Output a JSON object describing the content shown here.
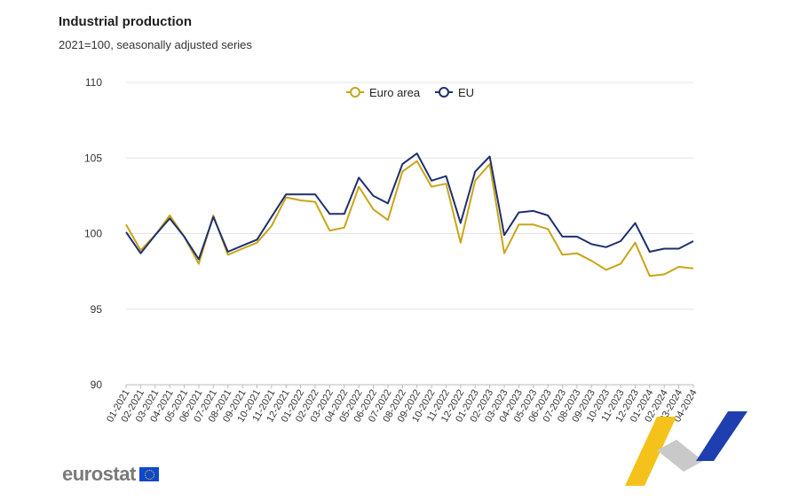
{
  "header": {
    "title": "Industrial production",
    "subtitle": "2021=100, seasonally adjusted series"
  },
  "brand": {
    "name": "eurostat"
  },
  "colors": {
    "euro_area": "#c8a518",
    "eu": "#1f2f6e",
    "grid": "#e3e3e3"
  },
  "chart_data": {
    "type": "line",
    "title": "Industrial production",
    "subtitle": "2021=100, seasonally adjusted series",
    "xlabel": "",
    "ylabel": "",
    "ylim": [
      90,
      110
    ],
    "yticks": [
      90,
      95,
      100,
      105,
      110
    ],
    "grid": true,
    "legend_position": "top-center",
    "x": [
      "01-2021",
      "02-2021",
      "03-2021",
      "04-2021",
      "05-2021",
      "06-2021",
      "07-2021",
      "08-2021",
      "09-2021",
      "10-2021",
      "11-2021",
      "12-2021",
      "01-2022",
      "02-2022",
      "03-2022",
      "04-2022",
      "05-2022",
      "06-2022",
      "07-2022",
      "08-2022",
      "09-2022",
      "10-2022",
      "11-2022",
      "12-2022",
      "01-2023",
      "02-2023",
      "03-2023",
      "04-2023",
      "05-2023",
      "06-2023",
      "07-2023",
      "08-2023",
      "09-2023",
      "10-2023",
      "11-2023",
      "12-2023",
      "01-2024",
      "02-2024",
      "03-2024",
      "04-2024"
    ],
    "series": [
      {
        "name": "Euro area",
        "color": "#c8a518",
        "values": [
          100.6,
          98.9,
          99.9,
          101.2,
          99.8,
          98.0,
          101.2,
          98.6,
          99.0,
          99.4,
          100.5,
          102.4,
          102.2,
          102.1,
          100.2,
          100.4,
          103.1,
          101.6,
          100.9,
          104.1,
          104.8,
          103.1,
          103.3,
          99.4,
          103.5,
          104.6,
          98.7,
          100.6,
          100.6,
          100.3,
          98.6,
          98.7,
          98.2,
          97.6,
          98.0,
          99.4,
          97.2,
          97.3,
          97.8,
          97.7
        ]
      },
      {
        "name": "EU",
        "color": "#1f2f6e",
        "values": [
          100.1,
          98.7,
          99.9,
          101.0,
          99.8,
          98.3,
          101.1,
          98.8,
          99.2,
          99.6,
          101.1,
          102.6,
          102.6,
          102.6,
          101.3,
          101.3,
          103.7,
          102.5,
          102.0,
          104.6,
          105.3,
          103.5,
          103.8,
          100.7,
          104.1,
          105.1,
          99.9,
          101.4,
          101.5,
          101.2,
          99.8,
          99.8,
          99.3,
          99.1,
          99.5,
          100.7,
          98.8,
          99.0,
          99.0,
          99.5
        ]
      }
    ]
  }
}
